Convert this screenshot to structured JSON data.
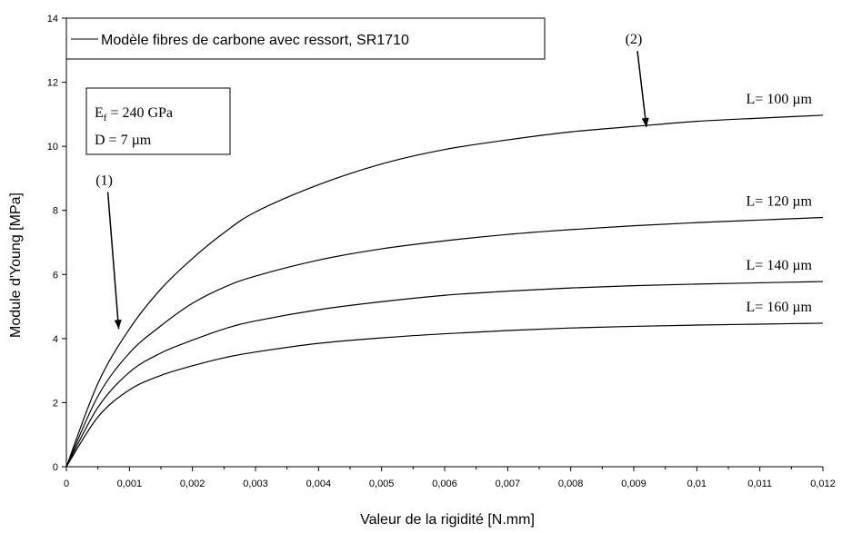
{
  "chart_data": {
    "type": "line",
    "xlabel": "Valeur de la rigidité [N.mm]",
    "ylabel": "Module d'Young [MPa]",
    "xlim": [
      0,
      0.012
    ],
    "ylim": [
      0,
      14
    ],
    "x_ticks": [
      "0",
      "0,001",
      "0,002",
      "0,003",
      "0,004",
      "0,005",
      "0,006",
      "0,007",
      "0,008",
      "0,009",
      "0,01",
      "0,011",
      "0,012"
    ],
    "y_ticks": [
      "0",
      "2",
      "4",
      "6",
      "8",
      "10",
      "12",
      "14"
    ],
    "grid": false,
    "legend": {
      "position": "top-left",
      "entries": [
        "Modèle fibres de carbone avec ressort, SR1710"
      ]
    },
    "line_color": "#000000",
    "series": [
      {
        "label": "L= 100 µm",
        "x": [
          0,
          0.0005,
          0.001,
          0.0015,
          0.002,
          0.0025,
          0.003,
          0.004,
          0.005,
          0.006,
          0.007,
          0.008,
          0.009,
          0.01,
          0.011,
          0.012
        ],
        "y": [
          0,
          2.6,
          4.3,
          5.55,
          6.5,
          7.3,
          7.95,
          8.8,
          9.45,
          9.9,
          10.2,
          10.45,
          10.62,
          10.78,
          10.88,
          10.97
        ]
      },
      {
        "label": "L= 120 µm",
        "x": [
          0,
          0.0005,
          0.001,
          0.0015,
          0.002,
          0.0025,
          0.003,
          0.004,
          0.005,
          0.006,
          0.007,
          0.008,
          0.009,
          0.01,
          0.011,
          0.012
        ],
        "y": [
          0,
          2.2,
          3.55,
          4.4,
          5.1,
          5.6,
          5.95,
          6.45,
          6.8,
          7.05,
          7.25,
          7.4,
          7.52,
          7.62,
          7.7,
          7.78
        ]
      },
      {
        "label": "L= 140 µm",
        "x": [
          0,
          0.0005,
          0.001,
          0.0015,
          0.002,
          0.0025,
          0.003,
          0.004,
          0.005,
          0.006,
          0.007,
          0.008,
          0.009,
          0.01,
          0.011,
          0.012
        ],
        "y": [
          0,
          1.85,
          2.95,
          3.55,
          3.95,
          4.3,
          4.55,
          4.9,
          5.15,
          5.35,
          5.48,
          5.58,
          5.65,
          5.7,
          5.74,
          5.78
        ]
      },
      {
        "label": "L= 160 µm",
        "x": [
          0,
          0.0005,
          0.001,
          0.0015,
          0.002,
          0.0025,
          0.003,
          0.004,
          0.005,
          0.006,
          0.007,
          0.008,
          0.009,
          0.01,
          0.011,
          0.012
        ],
        "y": [
          0,
          1.55,
          2.4,
          2.85,
          3.15,
          3.4,
          3.58,
          3.85,
          4.02,
          4.15,
          4.25,
          4.33,
          4.38,
          4.42,
          4.45,
          4.48
        ]
      }
    ],
    "annotations": [
      {
        "text": "(1)",
        "label_x": 0.0006,
        "label_y": 8.8,
        "arrow_to_x": 0.00083,
        "arrow_to_y": 4.3
      },
      {
        "text": "(2)",
        "label_x": 0.009,
        "label_y": 13.2,
        "arrow_to_x": 0.0092,
        "arrow_to_y": 10.6
      }
    ],
    "info_box": {
      "line1_main": "E",
      "line1_sub": "f",
      "line1_rest": " = 240 GPa",
      "line2": "D = 7 µm"
    }
  }
}
